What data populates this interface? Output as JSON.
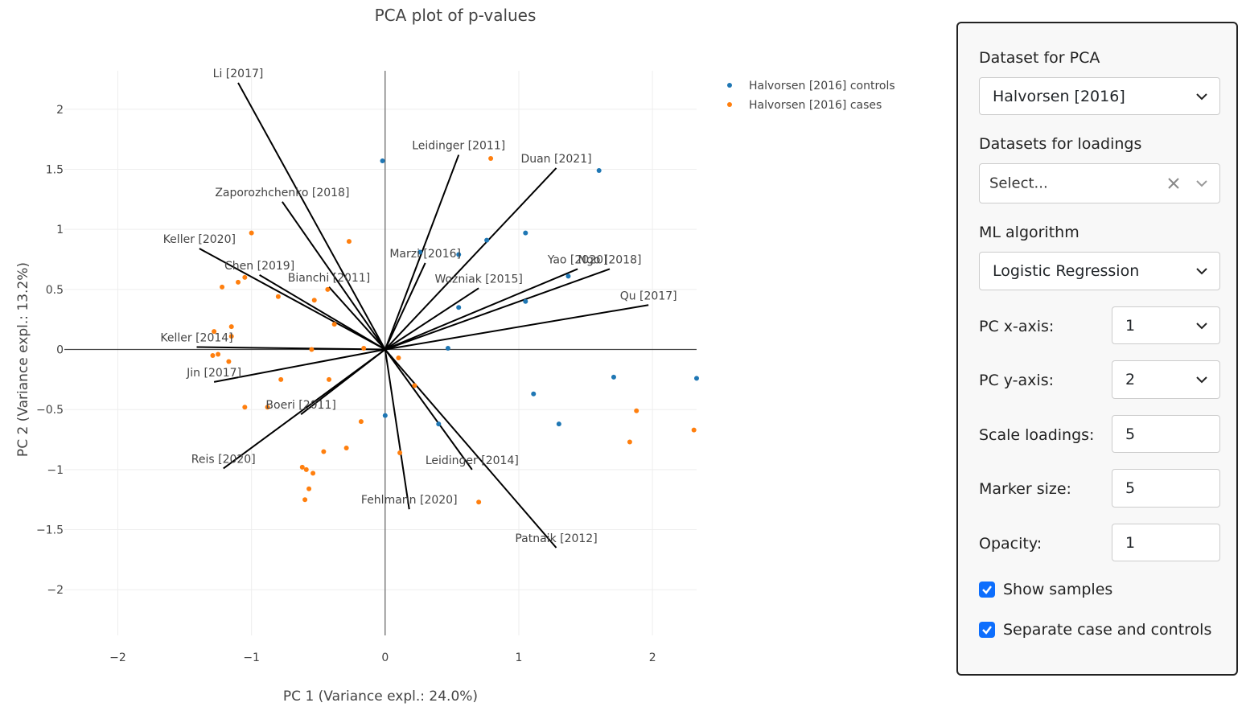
{
  "chart_data": {
    "type": "scatter",
    "title": "PCA plot of p-values",
    "xlabel": "PC 1 (Variance expl.: 24.0%)",
    "ylabel": "PC 2 (Variance expl.: 13.2%)",
    "xlim": [
      -2.4,
      2.33
    ],
    "ylim": [
      -2.38,
      2.32
    ],
    "xticks": [
      -2,
      -1,
      0,
      1,
      2
    ],
    "xtick_labels": [
      "−2",
      "−1",
      "0",
      "1",
      "2"
    ],
    "yticks": [
      -2,
      -1.5,
      -1,
      -0.5,
      0,
      0.5,
      1,
      1.5,
      2
    ],
    "ytick_labels": [
      "−2",
      "−1.5",
      "−1",
      "−0.5",
      "0",
      "0.5",
      "1",
      "1.5",
      "2"
    ],
    "grid": true,
    "legend_position": "top-right",
    "series": [
      {
        "name": "Halvorsen [2016] controls",
        "color": "#1f77b4",
        "points": [
          [
            -0.02,
            1.57
          ],
          [
            1.6,
            1.49
          ],
          [
            1.05,
            0.97
          ],
          [
            0.76,
            0.91
          ],
          [
            0.55,
            0.79
          ],
          [
            0.26,
            0.81
          ],
          [
            1.37,
            0.61
          ],
          [
            1.05,
            0.4
          ],
          [
            0.55,
            0.35
          ],
          [
            0.47,
            0.01
          ],
          [
            1.71,
            -0.23
          ],
          [
            2.33,
            -0.24
          ],
          [
            1.11,
            -0.37
          ],
          [
            1.3,
            -0.62
          ],
          [
            0.0,
            -0.55
          ],
          [
            0.4,
            -0.62
          ]
        ]
      },
      {
        "name": "Halvorsen [2016] cases",
        "color": "#ff7f0e",
        "points": [
          [
            0.79,
            1.59
          ],
          [
            -1.0,
            0.97
          ],
          [
            -0.27,
            0.9
          ],
          [
            -1.05,
            0.6
          ],
          [
            -1.1,
            0.56
          ],
          [
            -1.22,
            0.52
          ],
          [
            -0.8,
            0.44
          ],
          [
            -0.43,
            0.5
          ],
          [
            -0.53,
            0.41
          ],
          [
            -0.38,
            0.21
          ],
          [
            -1.28,
            0.15
          ],
          [
            -1.15,
            0.19
          ],
          [
            -1.15,
            0.11
          ],
          [
            -0.55,
            0.0
          ],
          [
            -0.16,
            0.01
          ],
          [
            -1.25,
            -0.04
          ],
          [
            -1.29,
            -0.05
          ],
          [
            -1.17,
            -0.1
          ],
          [
            0.1,
            -0.07
          ],
          [
            -0.78,
            -0.25
          ],
          [
            -0.42,
            -0.25
          ],
          [
            0.22,
            -0.3
          ],
          [
            -1.05,
            -0.48
          ],
          [
            -0.88,
            -0.48
          ],
          [
            -0.18,
            -0.6
          ],
          [
            0.11,
            -0.86
          ],
          [
            -0.29,
            -0.82
          ],
          [
            -0.46,
            -0.85
          ],
          [
            -0.62,
            -0.98
          ],
          [
            -0.59,
            -1.0
          ],
          [
            -0.54,
            -1.03
          ],
          [
            -0.57,
            -1.16
          ],
          [
            -0.6,
            -1.25
          ],
          [
            0.7,
            -1.27
          ],
          [
            1.88,
            -0.51
          ],
          [
            2.31,
            -0.67
          ],
          [
            1.83,
            -0.77
          ]
        ]
      }
    ],
    "loadings": [
      {
        "label": "Li [2017]",
        "x": -1.1,
        "y": 2.22
      },
      {
        "label": "Leidinger [2011]",
        "x": 0.55,
        "y": 1.62
      },
      {
        "label": "Duan [2021]",
        "x": 1.28,
        "y": 1.51
      },
      {
        "label": "Zaporozhchenko [2018]",
        "x": -0.77,
        "y": 1.23
      },
      {
        "label": "Keller [2020]",
        "x": -1.39,
        "y": 0.84
      },
      {
        "label": "Chen [2019]",
        "x": -0.94,
        "y": 0.62
      },
      {
        "label": "Bianchi [2011]",
        "x": -0.42,
        "y": 0.52
      },
      {
        "label": "Marzi [2016]",
        "x": 0.3,
        "y": 0.72
      },
      {
        "label": "Yao [2020]",
        "x": 1.44,
        "y": 0.67
      },
      {
        "label": "Ngo [2018]",
        "x": 1.68,
        "y": 0.67
      },
      {
        "label": "Wozniak [2015]",
        "x": 0.7,
        "y": 0.51
      },
      {
        "label": "Qu [2017]",
        "x": 1.97,
        "y": 0.37
      },
      {
        "label": "Keller [2014]",
        "x": -1.41,
        "y": 0.02
      },
      {
        "label": "Jin [2017]",
        "x": -1.28,
        "y": -0.27
      },
      {
        "label": "Boeri [2011]",
        "x": -0.63,
        "y": -0.54
      },
      {
        "label": "Reis [2020]",
        "x": -1.21,
        "y": -0.99
      },
      {
        "label": "Leidinger [2014]",
        "x": 0.65,
        "y": -1.0
      },
      {
        "label": "Fehlmann [2020]",
        "x": 0.18,
        "y": -1.33
      },
      {
        "label": "Patnaik [2012]",
        "x": 1.28,
        "y": -1.65
      }
    ]
  },
  "panel": {
    "dataset_label": "Dataset for PCA",
    "dataset_value": "Halvorsen [2016]",
    "loadings_label": "Datasets for loadings",
    "loadings_placeholder": "Select...",
    "ml_label": "ML algorithm",
    "ml_value": "Logistic Regression",
    "pcx_label": "PC x-axis:",
    "pcx_value": "1",
    "pcy_label": "PC y-axis:",
    "pcy_value": "2",
    "scale_label": "Scale loadings:",
    "scale_value": "5",
    "marker_label": "Marker size:",
    "marker_value": "5",
    "opacity_label": "Opacity:",
    "opacity_value": "1",
    "show_samples_label": "Show samples",
    "separate_label": "Separate case and controls",
    "accent": "#0d6efd"
  }
}
